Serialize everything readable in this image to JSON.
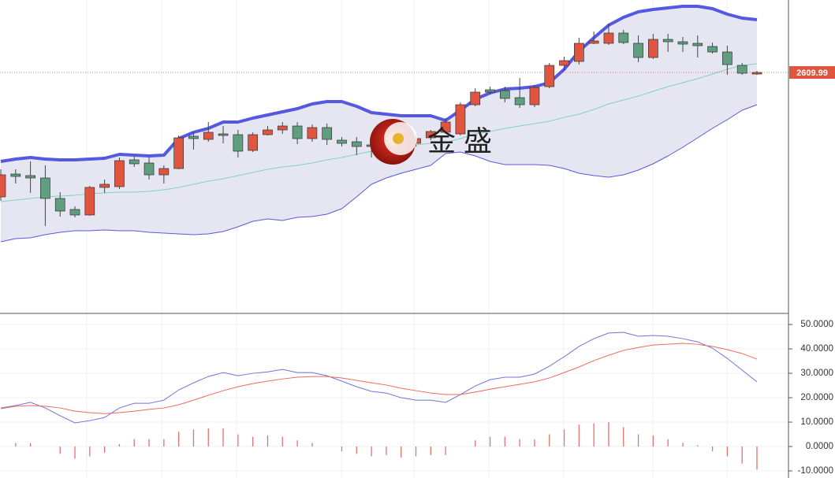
{
  "chart_data": [
    {
      "type": "candlestick",
      "open": [
        2452,
        2481,
        2479,
        2476,
        2450,
        2436,
        2429,
        2464,
        2465,
        2499,
        2495,
        2480,
        2488,
        2529,
        2525,
        2532,
        2531,
        2511,
        2531,
        2537,
        2542,
        2526,
        2540,
        2524,
        2522,
        2518,
        2517,
        2527,
        2520,
        2527,
        2534,
        2532,
        2569,
        2588,
        2587,
        2578,
        2569,
        2592,
        2619,
        2624,
        2647,
        2647,
        2660,
        2647,
        2629,
        2652,
        2649,
        2647,
        2643,
        2636,
        2619,
        2608
      ],
      "high": [
        2487,
        2487,
        2497,
        2492,
        2458,
        2440,
        2466,
        2474,
        2502,
        2503,
        2502,
        2492,
        2530,
        2534,
        2547,
        2542,
        2537,
        2534,
        2542,
        2547,
        2547,
        2544,
        2545,
        2528,
        2528,
        2524,
        2530,
        2532,
        2530,
        2537,
        2552,
        2572,
        2590,
        2592,
        2592,
        2603,
        2594,
        2622,
        2630,
        2654,
        2662,
        2672,
        2664,
        2657,
        2659,
        2659,
        2655,
        2657,
        2648,
        2644,
        2622,
        2612
      ],
      "low": [
        2447,
        2469,
        2457,
        2415,
        2427,
        2426,
        2428,
        2457,
        2462,
        2490,
        2474,
        2469,
        2487,
        2512,
        2522,
        2520,
        2502,
        2509,
        2530,
        2532,
        2519,
        2522,
        2518,
        2516,
        2505,
        2502,
        2512,
        2517,
        2516,
        2524,
        2532,
        2530,
        2567,
        2582,
        2572,
        2565,
        2566,
        2590,
        2612,
        2620,
        2646,
        2645,
        2646,
        2623,
        2627,
        2636,
        2636,
        2629,
        2634,
        2607,
        2607,
        2607
      ],
      "close": [
        2480,
        2478,
        2476,
        2450,
        2434,
        2429,
        2464,
        2468,
        2498,
        2494,
        2480,
        2488,
        2527,
        2526,
        2534,
        2530,
        2510,
        2531,
        2537,
        2542,
        2526,
        2540,
        2525,
        2520,
        2516,
        2516,
        2527,
        2522,
        2526,
        2535,
        2547,
        2569,
        2585,
        2585,
        2577,
        2569,
        2591,
        2619,
        2625,
        2647,
        2650,
        2660,
        2648,
        2629,
        2652,
        2649,
        2646,
        2644,
        2636,
        2620,
        2609,
        2609.99
      ],
      "up_color": "#e0553f",
      "down_color": "#5f9f80",
      "series": [
        {
          "color": "#5558e0",
          "values": [
            2497,
            2500,
            2502,
            2500,
            2499,
            2499,
            2500,
            2501,
            2506,
            2505,
            2504,
            2505,
            2526,
            2534,
            2539,
            2547,
            2547,
            2552,
            2556,
            2560,
            2564,
            2570,
            2573,
            2573,
            2567,
            2559,
            2557,
            2555,
            2555,
            2555,
            2549,
            2562,
            2576,
            2584,
            2589,
            2590,
            2592,
            2597,
            2614,
            2637,
            2654,
            2670,
            2680,
            2687,
            2690,
            2692,
            2694,
            2694,
            2691,
            2684,
            2679,
            2677
          ]
        },
        {
          "color": "#7fd4bb",
          "values": [
            2446,
            2448,
            2450,
            2452,
            2453,
            2454,
            2456,
            2457,
            2458,
            2458,
            2459,
            2461,
            2464,
            2468,
            2472,
            2475,
            2479,
            2483,
            2487,
            2490,
            2492,
            2495,
            2499,
            2502,
            2506,
            2510,
            2513,
            2516,
            2518,
            2520,
            2521,
            2526,
            2532,
            2535,
            2539,
            2542,
            2545,
            2548,
            2553,
            2557,
            2563,
            2570,
            2575,
            2580,
            2586,
            2592,
            2597,
            2602,
            2608,
            2614,
            2619,
            2621
          ]
        },
        {
          "color": "#5a5ad8",
          "values": [
            2395,
            2399,
            2400,
            2404,
            2407,
            2409,
            2409,
            2410,
            2409,
            2409,
            2407,
            2406,
            2405,
            2404,
            2405,
            2408,
            2414,
            2421,
            2424,
            2422,
            2426,
            2427,
            2430,
            2437,
            2452,
            2468,
            2476,
            2482,
            2487,
            2492,
            2507,
            2509,
            2504,
            2497,
            2493,
            2493,
            2493,
            2492,
            2488,
            2482,
            2479,
            2477,
            2480,
            2486,
            2494,
            2504,
            2515,
            2527,
            2539,
            2550,
            2562,
            2569
          ]
        }
      ],
      "band_fill": "#e6e6f2",
      "ylim": [
        2305,
        2702
      ],
      "last_price": 2609.99,
      "watermark": "金 盛"
    },
    {
      "type": "macd",
      "series": [
        {
          "color": "#6f74d6",
          "values": [
            15.8,
            16.8,
            18.1,
            15.8,
            12.6,
            9.7,
            10.6,
            11.9,
            15.8,
            17.7,
            17.7,
            19,
            23.2,
            26.1,
            28.7,
            30.3,
            29,
            30,
            30.6,
            31.6,
            30.3,
            30.3,
            29,
            26.8,
            24.5,
            22.6,
            21.9,
            20,
            19,
            19,
            18.1,
            21.3,
            24.8,
            27.4,
            28.4,
            28.4,
            29.7,
            32.9,
            36.8,
            41,
            44.2,
            46.5,
            46.8,
            45.2,
            45.5,
            45.2,
            44.2,
            42.9,
            40.3,
            36.1,
            31.3,
            26.5
          ]
        },
        {
          "color": "#e86b5f",
          "values": [
            15.5,
            16.5,
            16.8,
            16.5,
            15.8,
            14.5,
            13.9,
            13.5,
            13.9,
            14.5,
            15.2,
            15.8,
            17.1,
            19,
            21,
            22.9,
            24.5,
            25.8,
            26.8,
            27.7,
            28.4,
            28.7,
            28.7,
            28.1,
            27.1,
            26.1,
            25.2,
            23.9,
            22.9,
            21.9,
            21.3,
            21.3,
            22.3,
            23.5,
            24.5,
            25.5,
            26.5,
            28.1,
            30.3,
            32.6,
            35.2,
            37.4,
            39.4,
            40.6,
            41.6,
            41.9,
            42.3,
            41.9,
            41,
            39.7,
            38.1,
            35.8
          ]
        }
      ],
      "histogram": {
        "color": "#e8706a",
        "values": [
          0,
          1.5,
          1.3,
          0,
          -3,
          -5,
          -4,
          -2.5,
          1,
          3,
          3,
          3,
          6,
          7,
          7.5,
          7.5,
          5,
          4,
          4.5,
          4,
          2.5,
          1.5,
          0,
          -2,
          -3,
          -4,
          -3.5,
          -4.5,
          -4,
          -3.5,
          -3.5,
          0,
          2.5,
          4,
          4,
          3,
          3,
          5,
          7,
          9,
          9.5,
          10,
          8,
          5,
          4.5,
          3,
          1.5,
          0.5,
          -2,
          -4,
          -7,
          -9.5
        ]
      },
      "ylim": [
        -12.9,
        53.9
      ],
      "yticks": [
        {
          "value": 50,
          "label": "50.0000"
        },
        {
          "value": 40,
          "label": "40.0000"
        },
        {
          "value": 30,
          "label": "30.0000"
        },
        {
          "value": 20,
          "label": "20.0000"
        },
        {
          "value": 10,
          "label": "10.0000"
        },
        {
          "value": 0,
          "label": "0.0000"
        },
        {
          "value": -10,
          "label": "-10.0000"
        }
      ],
      "grid": true
    }
  ]
}
